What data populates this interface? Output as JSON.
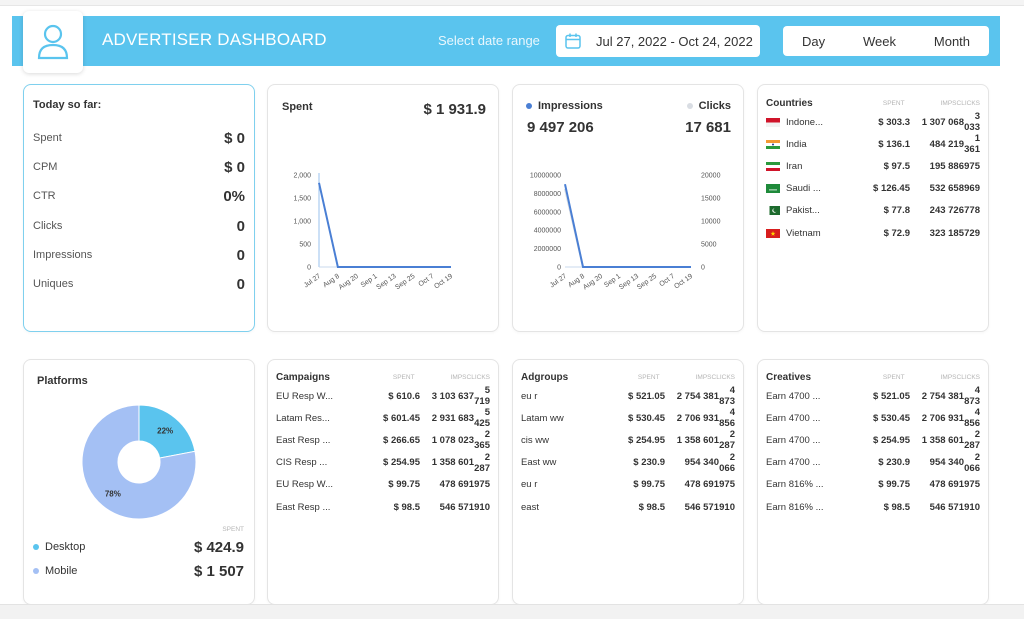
{
  "header": {
    "title": "ADVERTISER DASHBOARD",
    "range_label": "Select date range",
    "date_range": "Jul 27, 2022  - Oct 24, 2022",
    "periods": [
      "Day",
      "Week",
      "Month"
    ]
  },
  "today": {
    "title": "Today so far:",
    "rows": [
      {
        "label": "Spent",
        "value": "$ 0"
      },
      {
        "label": "CPM",
        "value": "$ 0"
      },
      {
        "label": "CTR",
        "value": "0%"
      },
      {
        "label": "Clicks",
        "value": "0"
      },
      {
        "label": "Impressions",
        "value": "0"
      },
      {
        "label": "Uniques",
        "value": "0"
      }
    ]
  },
  "spent": {
    "title": "Spent",
    "total": "$ 1 931.9"
  },
  "impressions": {
    "impressions_label": "Impressions",
    "impressions_total": "9 497 206",
    "clicks_label": "Clicks",
    "clicks_total": "17 681"
  },
  "countries": {
    "title": "Countries",
    "col_spent": "SPENT",
    "col_imps": "IMPS",
    "col_clicks": "CLICKS",
    "rows": [
      {
        "name": "Indone...",
        "flag": "indonesia",
        "spent": "$ 303.3",
        "imps": "1 307 068",
        "clicks": "3 033"
      },
      {
        "name": "India",
        "flag": "india",
        "spent": "$ 136.1",
        "imps": "484 219",
        "clicks": "1 361"
      },
      {
        "name": "Iran",
        "flag": "iran",
        "spent": "$ 97.5",
        "imps": "195 886",
        "clicks": "975"
      },
      {
        "name": "Saudi ...",
        "flag": "saudi-arabia",
        "spent": "$ 126.45",
        "imps": "532 658",
        "clicks": "969"
      },
      {
        "name": "Pakist...",
        "flag": "pakistan",
        "spent": "$ 77.8",
        "imps": "243 726",
        "clicks": "778"
      },
      {
        "name": "Vietnam",
        "flag": "vietnam",
        "spent": "$ 72.9",
        "imps": "323 185",
        "clicks": "729"
      }
    ]
  },
  "platforms": {
    "title": "Platforms",
    "spent_label": "SPENT",
    "items": [
      {
        "name": "Desktop",
        "value": "$ 424.9",
        "color": "#5ac4ee"
      },
      {
        "name": "Mobile",
        "value": "$ 1 507",
        "color": "#a4c0f4"
      }
    ]
  },
  "campaigns": {
    "title": "Campaigns",
    "col_spent": "SPENT",
    "col_imps": "IMPS",
    "col_clicks": "CLICKS",
    "rows": [
      {
        "name": "EU Resp W...",
        "spent": "$ 610.6",
        "imps": "3 103 637",
        "clicks": "5 719"
      },
      {
        "name": "Latam Res...",
        "spent": "$ 601.45",
        "imps": "2 931 683",
        "clicks": "5 425"
      },
      {
        "name": "East Resp ...",
        "spent": "$ 266.65",
        "imps": "1 078 023",
        "clicks": "2 365"
      },
      {
        "name": "CIS Resp ...",
        "spent": "$ 254.95",
        "imps": "1 358 601",
        "clicks": "2 287"
      },
      {
        "name": "EU Resp W...",
        "spent": "$ 99.75",
        "imps": "478 691",
        "clicks": "975"
      },
      {
        "name": "East Resp ...",
        "spent": "$ 98.5",
        "imps": "546 571",
        "clicks": "910"
      }
    ]
  },
  "adgroups": {
    "title": "Adgroups",
    "col_spent": "SPENT",
    "col_imps": "IMPS",
    "col_clicks": "CLICKS",
    "rows": [
      {
        "name": "eu r",
        "spent": "$ 521.05",
        "imps": "2 754 381",
        "clicks": "4 873"
      },
      {
        "name": "Latam ww",
        "spent": "$ 530.45",
        "imps": "2 706 931",
        "clicks": "4 856"
      },
      {
        "name": "cis ww",
        "spent": "$ 254.95",
        "imps": "1 358 601",
        "clicks": "2 287"
      },
      {
        "name": "East ww",
        "spent": "$ 230.9",
        "imps": "954 340",
        "clicks": "2 066"
      },
      {
        "name": "eu r",
        "spent": "$ 99.75",
        "imps": "478 691",
        "clicks": "975"
      },
      {
        "name": "east",
        "spent": "$ 98.5",
        "imps": "546 571",
        "clicks": "910"
      }
    ]
  },
  "creatives": {
    "title": "Creatives",
    "col_spent": "SPENT",
    "col_imps": "IMPS",
    "col_clicks": "CLICKS",
    "rows": [
      {
        "name": "Earn 4700 ...",
        "spent": "$ 521.05",
        "imps": "2 754 381",
        "clicks": "4 873"
      },
      {
        "name": "Earn 4700 ...",
        "spent": "$ 530.45",
        "imps": "2 706 931",
        "clicks": "4 856"
      },
      {
        "name": "Earn 4700 ...",
        "spent": "$ 254.95",
        "imps": "1 358 601",
        "clicks": "2 287"
      },
      {
        "name": "Earn 4700 ...",
        "spent": "$ 230.9",
        "imps": "954 340",
        "clicks": "2 066"
      },
      {
        "name": "Earn 816% ...",
        "spent": "$ 99.75",
        "imps": "478 691",
        "clicks": "975"
      },
      {
        "name": "Earn 816% ...",
        "spent": "$ 98.5",
        "imps": "546 571",
        "clicks": "910"
      }
    ]
  },
  "chart_data": [
    {
      "type": "line",
      "x": [
        "Jul 27",
        "Aug 8",
        "Aug 20",
        "Sep 1",
        "Sep 13",
        "Sep 25",
        "Oct 7",
        "Oct 19"
      ],
      "ylim": [
        0,
        2000
      ],
      "yticks": [
        "0",
        "500",
        "1,000",
        "1,500",
        "2,000"
      ],
      "series": [
        {
          "values": [
            1830,
            0,
            0,
            0,
            0,
            0,
            0,
            0
          ],
          "color": "#4a7fd4"
        }
      ]
    },
    {
      "type": "line",
      "x": [
        "Jul 27",
        "Aug 8",
        "Aug 20",
        "Sep 1",
        "Sep 13",
        "Sep 25",
        "Oct 7",
        "Oct 19"
      ],
      "ylim_left": [
        0,
        10000000
      ],
      "ylim_right": [
        0,
        20000
      ],
      "yticks_left": [
        "0",
        "2000000",
        "4000000",
        "6000000",
        "8000000",
        "10000000"
      ],
      "yticks_right": [
        "0",
        "5000",
        "10000",
        "15000",
        "20000"
      ],
      "series": [
        {
          "name": "Impressions",
          "axis": "left",
          "values": [
            9000000,
            0,
            0,
            0,
            0,
            0,
            0,
            0
          ],
          "color": "#4a7fd4"
        },
        {
          "name": "Clicks",
          "axis": "right",
          "values": [
            17000,
            0,
            0,
            0,
            0,
            0,
            0,
            0
          ],
          "color": "#d9dde3"
        }
      ]
    },
    {
      "type": "pie",
      "labels": [
        "Desktop",
        "Mobile"
      ],
      "values": [
        22,
        78
      ],
      "slice_labels": [
        "22%",
        "78%"
      ],
      "colors": [
        "#5ac4ee",
        "#a4c0f4"
      ]
    }
  ]
}
